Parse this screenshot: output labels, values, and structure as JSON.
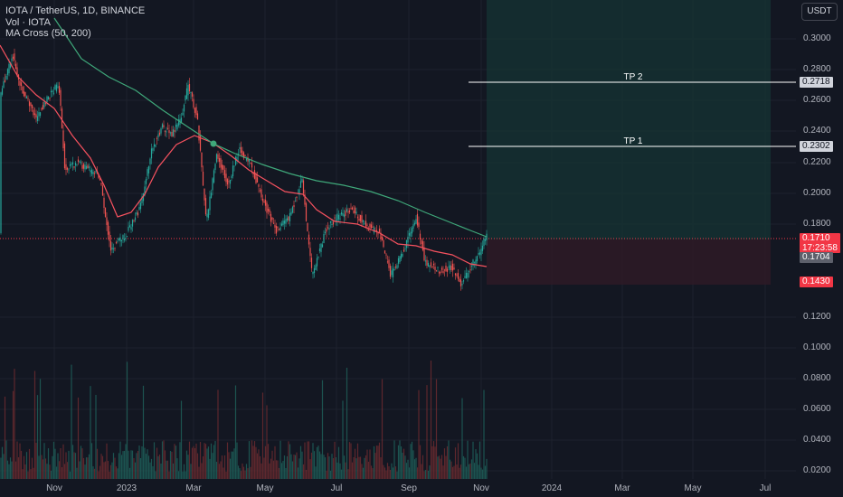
{
  "legend": {
    "symbol": "IOTA / TetherUS, 1D, BINANCE",
    "volume": "Vol · IOTA",
    "indicator": "MA Cross (50, 200)"
  },
  "currency_button": "USDT",
  "price_axis": {
    "labels": [
      "0.3000",
      "0.2800",
      "0.2600",
      "0.2400",
      "0.2200",
      "0.2000",
      "0.1800",
      "0.1200",
      "0.1000",
      "0.0800",
      "0.0600",
      "0.0400",
      "0.0200"
    ]
  },
  "time_axis": {
    "labels": [
      "Nov",
      "2023",
      "Mar",
      "May",
      "Jul",
      "Sep",
      "Nov",
      "2024",
      "Mar",
      "May",
      "Jul"
    ]
  },
  "price_tags": {
    "tp2": "0.2718",
    "tp1": "0.2302",
    "current_price": "0.1710",
    "countdown": "17:23:58",
    "ma_value": "0.1704",
    "stop_loss": "0.1430"
  },
  "annotations": {
    "tp2_label": "TP 2",
    "tp1_label": "TP 1"
  },
  "colors": {
    "background": "#131722",
    "up": "#26a69a",
    "down": "#ef5350",
    "ma_fast": "#f7525f",
    "ma_slow": "#3fa87a",
    "target_zone": "#1b3a3a",
    "stop_zone": "#3a1f2b"
  }
}
